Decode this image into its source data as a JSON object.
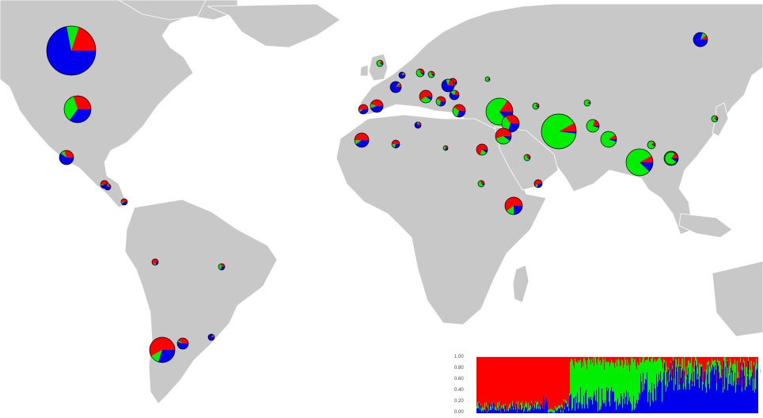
{
  "colors": {
    "ocean": "#ffffff",
    "land": "#c8c8c8",
    "border": "#ffffff",
    "cluster_red": "#ff0000",
    "cluster_green": "#00ee00",
    "cluster_blue": "#0000ee"
  },
  "clusters": [
    "red",
    "green",
    "blue"
  ],
  "locations": [
    {
      "id": "canada",
      "props": [
        0.2,
        0.08,
        0.72
      ]
    },
    {
      "id": "usa-north",
      "props": [
        0.3,
        0.35,
        0.35
      ]
    },
    {
      "id": "mexico-north",
      "props": [
        0.3,
        0.1,
        0.6
      ]
    },
    {
      "id": "mexico-south",
      "props": [
        0.5,
        0.05,
        0.45
      ]
    },
    {
      "id": "central-america-1",
      "props": [
        0.2,
        0.1,
        0.7
      ]
    },
    {
      "id": "central-america-2",
      "props": [
        0.5,
        0.1,
        0.4
      ]
    },
    {
      "id": "peru",
      "props": [
        0.7,
        0.1,
        0.2
      ]
    },
    {
      "id": "brazil",
      "props": [
        0.3,
        0.4,
        0.3
      ]
    },
    {
      "id": "chile-argentina",
      "props": [
        0.58,
        0.12,
        0.3
      ]
    },
    {
      "id": "argentina-2",
      "props": [
        0.4,
        0.05,
        0.55
      ]
    },
    {
      "id": "uruguay",
      "props": [
        0.1,
        0.05,
        0.85
      ]
    },
    {
      "id": "uk",
      "props": [
        0.2,
        0.7,
        0.1
      ]
    },
    {
      "id": "france-north",
      "props": [
        0.1,
        0.1,
        0.8
      ]
    },
    {
      "id": "france",
      "props": [
        0.1,
        0.05,
        0.85
      ]
    },
    {
      "id": "germany",
      "props": [
        0.3,
        0.6,
        0.1
      ]
    },
    {
      "id": "poland",
      "props": [
        0.3,
        0.6,
        0.1
      ]
    },
    {
      "id": "romania",
      "props": [
        0.4,
        0.5,
        0.1
      ]
    },
    {
      "id": "spain",
      "props": [
        0.45,
        0.1,
        0.45
      ]
    },
    {
      "id": "portugal",
      "props": [
        0.55,
        0.05,
        0.4
      ]
    },
    {
      "id": "italy-north",
      "props": [
        0.6,
        0.3,
        0.1
      ]
    },
    {
      "id": "italy",
      "props": [
        0.4,
        0.3,
        0.3
      ]
    },
    {
      "id": "balkans-1",
      "props": [
        0.2,
        0.1,
        0.7
      ]
    },
    {
      "id": "balkans-2",
      "props": [
        0.2,
        0.2,
        0.6
      ]
    },
    {
      "id": "greece",
      "props": [
        0.4,
        0.3,
        0.3
      ]
    },
    {
      "id": "turkey-west",
      "props": [
        0.1,
        0.8,
        0.1
      ]
    },
    {
      "id": "turkey",
      "props": [
        0.15,
        0.7,
        0.15
      ]
    },
    {
      "id": "syria-lebanon",
      "props": [
        0.35,
        0.35,
        0.3
      ]
    },
    {
      "id": "israel",
      "props": [
        0.55,
        0.35,
        0.1
      ]
    },
    {
      "id": "morocco",
      "props": [
        0.5,
        0.1,
        0.4
      ]
    },
    {
      "id": "algeria",
      "props": [
        0.5,
        0.2,
        0.3
      ]
    },
    {
      "id": "tunisia",
      "props": [
        0.2,
        0.1,
        0.7
      ]
    },
    {
      "id": "libya",
      "props": [
        0.3,
        0.4,
        0.3
      ]
    },
    {
      "id": "egypt",
      "props": [
        0.7,
        0.2,
        0.1
      ]
    },
    {
      "id": "sudan",
      "props": [
        0.3,
        0.6,
        0.1
      ]
    },
    {
      "id": "ethiopia",
      "props": [
        0.6,
        0.15,
        0.25
      ]
    },
    {
      "id": "yemen",
      "props": [
        0.6,
        0.1,
        0.3
      ]
    },
    {
      "id": "arabia",
      "props": [
        0.3,
        0.6,
        0.1
      ]
    },
    {
      "id": "iran",
      "props": [
        0.08,
        0.9,
        0.02
      ]
    },
    {
      "id": "caucasus",
      "props": [
        0.2,
        0.7,
        0.1
      ]
    },
    {
      "id": "central-asia-1",
      "props": [
        0.1,
        0.85,
        0.05
      ]
    },
    {
      "id": "central-asia-2",
      "props": [
        0.2,
        0.75,
        0.05
      ]
    },
    {
      "id": "afghanistan",
      "props": [
        0.1,
        0.85,
        0.05
      ]
    },
    {
      "id": "pakistan",
      "props": [
        0.15,
        0.8,
        0.05
      ]
    },
    {
      "id": "kashmir",
      "props": [
        0.2,
        0.7,
        0.1
      ]
    },
    {
      "id": "india",
      "props": [
        0.08,
        0.8,
        0.12
      ]
    },
    {
      "id": "nepal-bangladesh",
      "props": [
        0.15,
        0.75,
        0.1
      ]
    },
    {
      "id": "siberia",
      "props": [
        0.1,
        0.1,
        0.8
      ]
    },
    {
      "id": "china",
      "props": [
        0.2,
        0.7,
        0.1
      ]
    }
  ],
  "inset": {
    "y_ticks": [
      "1.00",
      "0.80",
      "0.60",
      "0.40",
      "0.20",
      "0.00"
    ]
  }
}
